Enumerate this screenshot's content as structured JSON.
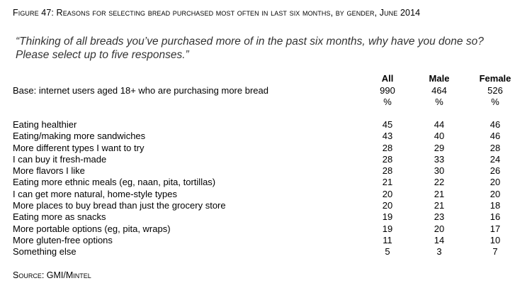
{
  "figure_title": "Figure 47: Reasons for selecting bread purchased most often in last six months, by gender, June 2014",
  "question": "“Thinking of all breads you’ve purchased more of in the past six months, why have you done so? Please select up to five responses.”",
  "columns": [
    "All",
    "Male",
    "Female"
  ],
  "base": {
    "label": "Base: internet users aged 18+ who are purchasing more bread",
    "values": [
      "990",
      "464",
      "526"
    ],
    "unit": "%"
  },
  "rows": [
    {
      "label": "Eating healthier",
      "values": [
        "45",
        "44",
        "46"
      ]
    },
    {
      "label": "Eating/making more sandwiches",
      "values": [
        "43",
        "40",
        "46"
      ]
    },
    {
      "label": "More different types I want to try",
      "values": [
        "28",
        "29",
        "28"
      ]
    },
    {
      "label": "I can buy it fresh-made",
      "values": [
        "28",
        "33",
        "24"
      ]
    },
    {
      "label": "More flavors I like",
      "values": [
        "28",
        "30",
        "26"
      ]
    },
    {
      "label": "Eating more ethnic meals (eg, naan, pita, tortillas)",
      "values": [
        "21",
        "22",
        "20"
      ]
    },
    {
      "label": "I can get more natural, home-style types",
      "values": [
        "20",
        "21",
        "20"
      ]
    },
    {
      "label": "More places to buy bread than just the grocery store",
      "values": [
        "20",
        "21",
        "18"
      ]
    },
    {
      "label": "Eating more as snacks",
      "values": [
        "19",
        "23",
        "16"
      ]
    },
    {
      "label": "More portable options (eg, pita, wraps)",
      "values": [
        "19",
        "20",
        "17"
      ]
    },
    {
      "label": "More gluten-free options",
      "values": [
        "11",
        "14",
        "10"
      ]
    },
    {
      "label": "Something else",
      "values": [
        "5",
        "3",
        "7"
      ]
    }
  ],
  "source": "Source: GMI/Mintel"
}
